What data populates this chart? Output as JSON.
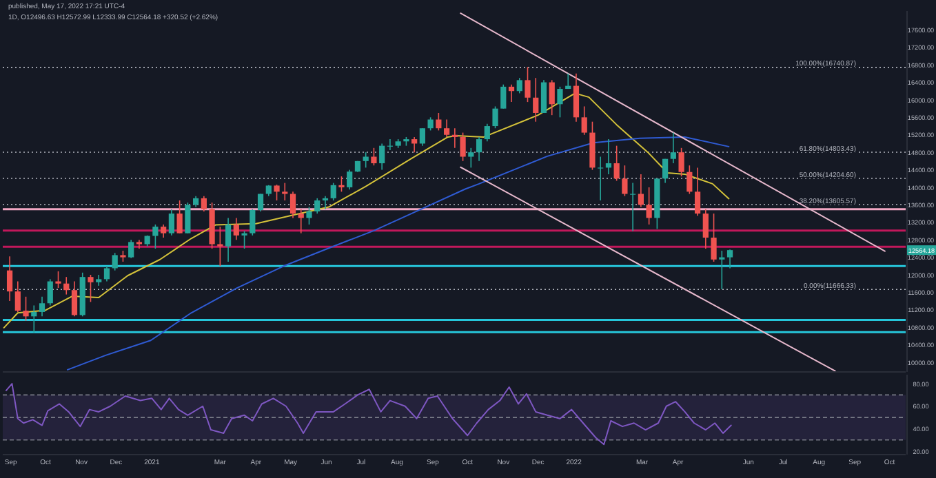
{
  "chart_data": [
    {
      "type": "candlestick",
      "annotations": [
        "published, May 17, 2022 17:21 UTC-4",
        "1D, O12496.63 H12572.99 L12333.99 C12564.18 +320.52 (+2.62%)",
        {
          "text": "12564.18",
          "y": 12564.18
        }
      ],
      "xlim": [
        "2020-08-25",
        "2022-10-15"
      ],
      "ylim": [
        9780,
        18030
      ],
      "tick_labels": "y",
      "grid": false,
      "yticks": [
        {
          "value": 10000,
          "label": "10000.00"
        },
        {
          "value": 10400,
          "label": "10400.00"
        },
        {
          "value": 10800,
          "label": "10800.00"
        },
        {
          "value": 11200,
          "label": "11200.00"
        },
        {
          "value": 11600,
          "label": "11600.00"
        },
        {
          "value": 12000,
          "label": "12000.00"
        },
        {
          "value": 12400,
          "label": "12400.00"
        },
        {
          "value": 12800,
          "label": "12800.00"
        },
        {
          "value": 13200,
          "label": "13200.00"
        },
        {
          "value": 13600,
          "label": "13600.00"
        },
        {
          "value": 14000,
          "label": "14000.00"
        },
        {
          "value": 14400,
          "label": "14400.00"
        },
        {
          "value": 14800,
          "label": "14800.00"
        },
        {
          "value": 15200,
          "label": "15200.00"
        },
        {
          "value": 15600,
          "label": "15600.00"
        },
        {
          "value": 16000,
          "label": "16000.00"
        },
        {
          "value": 16400,
          "label": "16400.00"
        },
        {
          "value": 16800,
          "label": "16800.00"
        },
        {
          "value": 17200,
          "label": "17200.00"
        },
        {
          "value": 17600,
          "label": "17600.00"
        }
      ],
      "x": [
        "2020-08-31",
        "2020-09-07",
        "2020-09-14",
        "2020-09-21",
        "2020-09-28",
        "2020-10-05",
        "2020-10-12",
        "2020-10-19",
        "2020-10-26",
        "2020-11-02",
        "2020-11-09",
        "2020-11-16",
        "2020-11-23",
        "2020-11-30",
        "2020-12-07",
        "2020-12-14",
        "2020-12-21",
        "2020-12-28",
        "2021-01-04",
        "2021-01-11",
        "2021-01-18",
        "2021-01-25",
        "2021-02-01",
        "2021-02-08",
        "2021-02-15",
        "2021-02-22",
        "2021-03-01",
        "2021-03-08",
        "2021-03-15",
        "2021-03-22",
        "2021-03-29",
        "2021-04-05",
        "2021-04-12",
        "2021-04-19",
        "2021-04-26",
        "2021-05-03",
        "2021-05-10",
        "2021-05-17",
        "2021-05-24",
        "2021-05-31",
        "2021-06-07",
        "2021-06-14",
        "2021-06-21",
        "2021-06-28",
        "2021-07-05",
        "2021-07-12",
        "2021-07-19",
        "2021-07-26",
        "2021-08-02",
        "2021-08-09",
        "2021-08-16",
        "2021-08-23",
        "2021-08-30",
        "2021-09-06",
        "2021-09-13",
        "2021-09-20",
        "2021-09-27",
        "2021-10-04",
        "2021-10-11",
        "2021-10-18",
        "2021-10-25",
        "2021-11-01",
        "2021-11-08",
        "2021-11-15",
        "2021-11-22",
        "2021-11-29",
        "2021-12-06",
        "2021-12-13",
        "2021-12-20",
        "2021-12-27",
        "2022-01-03",
        "2022-01-10",
        "2022-01-17",
        "2022-01-24",
        "2022-01-31",
        "2022-02-07",
        "2022-02-14",
        "2022-02-21",
        "2022-02-28",
        "2022-03-07",
        "2022-03-14",
        "2022-03-21",
        "2022-03-28",
        "2022-04-04",
        "2022-04-11",
        "2022-04-18",
        "2022-04-25",
        "2022-05-02",
        "2022-05-09",
        "2022-05-16"
      ],
      "ohlc": [
        [
          12100,
          12420,
          11400,
          11620
        ],
        [
          11620,
          11850,
          11150,
          11180
        ],
        [
          11180,
          11500,
          10950,
          11050
        ],
        [
          11050,
          11300,
          10680,
          11150
        ],
        [
          11150,
          11500,
          11050,
          11350
        ],
        [
          11350,
          11900,
          11300,
          11850
        ],
        [
          11850,
          12080,
          11700,
          11800
        ],
        [
          11800,
          11950,
          11550,
          11650
        ],
        [
          11650,
          11850,
          11050,
          11080
        ],
        [
          11080,
          12050,
          11050,
          11950
        ],
        [
          11950,
          12000,
          11380,
          11830
        ],
        [
          11830,
          12000,
          11750,
          11900
        ],
        [
          11900,
          12200,
          11850,
          12150
        ],
        [
          12150,
          12500,
          12100,
          12450
        ],
        [
          12450,
          12550,
          12300,
          12400
        ],
        [
          12400,
          12800,
          12380,
          12750
        ],
        [
          12750,
          12800,
          12600,
          12700
        ],
        [
          12700,
          12900,
          12650,
          12890
        ],
        [
          12890,
          13150,
          12600,
          13100
        ],
        [
          13100,
          13150,
          12850,
          12950
        ],
        [
          12950,
          13500,
          12900,
          13400
        ],
        [
          13400,
          13700,
          12950,
          12950
        ],
        [
          12950,
          13650,
          12950,
          13600
        ],
        [
          13600,
          13800,
          13550,
          13750
        ],
        [
          13750,
          13800,
          13450,
          13500
        ],
        [
          13500,
          13650,
          12600,
          12700
        ],
        [
          12700,
          13100,
          12200,
          12650
        ],
        [
          12650,
          13300,
          12300,
          13150
        ],
        [
          13150,
          13300,
          12800,
          12900
        ],
        [
          12900,
          13000,
          12600,
          12950
        ],
        [
          12950,
          13500,
          12900,
          13480
        ],
        [
          13480,
          13850,
          13450,
          13850
        ],
        [
          13850,
          14050,
          13800,
          14040
        ],
        [
          14040,
          14060,
          13700,
          13900
        ],
        [
          13900,
          14100,
          13700,
          13850
        ],
        [
          13850,
          13900,
          13300,
          13400
        ],
        [
          13400,
          13500,
          12950,
          13300
        ],
        [
          13300,
          13550,
          13150,
          13450
        ],
        [
          13450,
          13750,
          13400,
          13700
        ],
        [
          13700,
          13800,
          13500,
          13750
        ],
        [
          13750,
          14100,
          13700,
          14050
        ],
        [
          14050,
          14250,
          13900,
          14000
        ],
        [
          14000,
          14400,
          13950,
          14360
        ],
        [
          14360,
          14600,
          14350,
          14600
        ],
        [
          14600,
          14800,
          14450,
          14700
        ],
        [
          14700,
          14900,
          14500,
          14550
        ],
        [
          14550,
          15000,
          14400,
          14950
        ],
        [
          14950,
          15100,
          14850,
          14950
        ],
        [
          14950,
          15100,
          14900,
          15050
        ],
        [
          15050,
          15150,
          14950,
          15100
        ],
        [
          15100,
          15150,
          14800,
          15000
        ],
        [
          15000,
          15350,
          14950,
          15350
        ],
        [
          15350,
          15600,
          15300,
          15550
        ],
        [
          15550,
          15700,
          15300,
          15350
        ],
        [
          15350,
          15550,
          15150,
          15200
        ],
        [
          15200,
          15350,
          14900,
          15150
        ],
        [
          15150,
          15250,
          14600,
          14700
        ],
        [
          14700,
          14900,
          14450,
          14800
        ],
        [
          14800,
          15150,
          14600,
          15100
        ],
        [
          15100,
          15450,
          15050,
          15400
        ],
        [
          15400,
          15850,
          15350,
          15800
        ],
        [
          15800,
          16350,
          15800,
          16300
        ],
        [
          16300,
          16350,
          15950,
          16200
        ],
        [
          16200,
          16500,
          16150,
          16450
        ],
        [
          16450,
          16750,
          15950,
          16050
        ],
        [
          16050,
          16500,
          15500,
          15700
        ],
        [
          15700,
          16450,
          15700,
          16400
        ],
        [
          16400,
          16450,
          15650,
          15900
        ],
        [
          15900,
          16300,
          15600,
          16250
        ],
        [
          16250,
          16600,
          16250,
          16320
        ],
        [
          16320,
          16600,
          15500,
          15600
        ],
        [
          15600,
          15850,
          15200,
          15250
        ],
        [
          15250,
          15500,
          14400,
          14450
        ],
        [
          14450,
          14700,
          13700,
          14450
        ],
        [
          14450,
          15100,
          14300,
          14550
        ],
        [
          14550,
          14950,
          14150,
          14200
        ],
        [
          14200,
          14500,
          13800,
          13850
        ],
        [
          13850,
          14100,
          13000,
          13850
        ],
        [
          13850,
          14300,
          13550,
          13600
        ],
        [
          13600,
          14000,
          13150,
          13300
        ],
        [
          13300,
          14200,
          13050,
          14200
        ],
        [
          14200,
          14650,
          14100,
          14650
        ],
        [
          14650,
          15250,
          14550,
          14800
        ],
        [
          14800,
          14900,
          14250,
          14350
        ],
        [
          14350,
          14500,
          13850,
          13900
        ],
        [
          13900,
          14450,
          13350,
          13400
        ],
        [
          13400,
          13500,
          12600,
          12850
        ],
        [
          12850,
          13400,
          12300,
          12350
        ],
        [
          12350,
          12550,
          11670,
          12400
        ],
        [
          12400,
          12580,
          12150,
          12564.18
        ]
      ],
      "series": [
        {
          "type": "line",
          "color": "#d4c23a",
          "x": [
            "2020-08-26",
            "2020-09-07",
            "2020-10-01",
            "2020-10-24",
            "2020-11-16",
            "2020-12-11",
            "2021-01-08",
            "2021-02-04",
            "2021-02-25",
            "2021-04-01",
            "2021-05-07",
            "2021-06-03",
            "2021-07-05",
            "2021-08-13",
            "2021-09-14",
            "2021-09-21",
            "2021-10-15",
            "2021-12-01",
            "2022-01-02",
            "2022-01-14",
            "2022-02-07",
            "2022-03-06",
            "2022-03-23",
            "2022-04-07",
            "2022-05-01",
            "2022-05-15"
          ],
          "values": [
            10790,
            11130,
            11190,
            11510,
            11480,
            11980,
            12350,
            12830,
            13140,
            13170,
            13390,
            13550,
            14020,
            14650,
            15150,
            15180,
            15150,
            15650,
            16150,
            16060,
            15430,
            14800,
            14330,
            14300,
            14080,
            13740
          ]
        },
        {
          "type": "line",
          "color": "#2f5bd3",
          "x": [
            "2020-10-20",
            "2020-11-22",
            "2020-12-31",
            "2021-02-04",
            "2021-03-15",
            "2021-04-25",
            "2021-06-03",
            "2021-07-12",
            "2021-08-21",
            "2021-09-29",
            "2021-10-11",
            "2021-12-09",
            "2022-01-18",
            "2022-02-27",
            "2022-04-07",
            "2022-05-15"
          ],
          "values": [
            9830,
            10160,
            10500,
            11130,
            11690,
            12200,
            12610,
            13010,
            13490,
            13960,
            14080,
            14710,
            15020,
            15120,
            15150,
            14930
          ]
        },
        {
          "type": "line",
          "color": "#e6b8cc",
          "x": [
            "2021-09-25",
            "2022-09-27"
          ],
          "values": [
            17980,
            12540
          ]
        },
        {
          "type": "line",
          "color": "#e6b8cc",
          "x": [
            "2021-09-25",
            "2022-08-15"
          ],
          "values": [
            14460,
            9800
          ]
        }
      ],
      "ref_lines": [
        {
          "axis": "y",
          "value": 16740.87,
          "label": "100.00%(16740.87)",
          "color": "#b2b5be",
          "line_style": "dotted"
        },
        {
          "axis": "y",
          "value": 14803.43,
          "label": "61.80%(14803.43)",
          "color": "#b2b5be",
          "line_style": "dotted"
        },
        {
          "axis": "y",
          "value": 14204.6,
          "label": "50.00%(14204.60)",
          "color": "#b2b5be",
          "line_style": "dotted"
        },
        {
          "axis": "y",
          "value": 13605.57,
          "label": "38.20%(13605.57)",
          "color": "#b2b5be",
          "line_style": "dotted"
        },
        {
          "axis": "y",
          "value": 11666.33,
          "label": "0.00%(11666.33)",
          "color": "#b2b5be",
          "line_style": "dotted"
        },
        {
          "axis": "y",
          "value": 13500,
          "color": "#f2a7c3",
          "line_style": "solid"
        },
        {
          "axis": "y",
          "value": 13010,
          "color": "#c2185b",
          "line_style": "solid"
        },
        {
          "axis": "y",
          "value": 12640,
          "color": "#c2185b",
          "line_style": "solid"
        },
        {
          "axis": "y",
          "value": 12200,
          "color": "#26c6da",
          "line_style": "solid"
        },
        {
          "axis": "y",
          "value": 10970,
          "color": "#26c6da",
          "line_style": "solid"
        },
        {
          "axis": "y",
          "value": 10690,
          "color": "#26c6da",
          "line_style": "solid"
        }
      ]
    },
    {
      "type": "line",
      "xlim": [
        "2020-08-25",
        "2022-10-15"
      ],
      "ylim": [
        17,
        88
      ],
      "grid": false,
      "yticks": [
        {
          "value": 20,
          "label": "20.00"
        },
        {
          "value": 40,
          "label": "40.00"
        },
        {
          "value": 60,
          "label": "60.00"
        },
        {
          "value": 80,
          "label": "80.00"
        }
      ],
      "xticks": [
        {
          "value": "2020-09-01",
          "label": "Sep"
        },
        {
          "value": "2020-10-01",
          "label": "Oct"
        },
        {
          "value": "2020-11-01",
          "label": "Nov"
        },
        {
          "value": "2020-12-01",
          "label": "Dec"
        },
        {
          "value": "2021-01-01",
          "label": "2021"
        },
        {
          "value": "2021-03-01",
          "label": "Mar"
        },
        {
          "value": "2021-04-01",
          "label": "Apr"
        },
        {
          "value": "2021-05-01",
          "label": "May"
        },
        {
          "value": "2021-06-01",
          "label": "Jun"
        },
        {
          "value": "2021-07-01",
          "label": "Jul"
        },
        {
          "value": "2021-08-01",
          "label": "Aug"
        },
        {
          "value": "2021-09-01",
          "label": "Sep"
        },
        {
          "value": "2021-10-01",
          "label": "Oct"
        },
        {
          "value": "2021-11-01",
          "label": "Nov"
        },
        {
          "value": "2021-12-01",
          "label": "Dec"
        },
        {
          "value": "2022-01-01",
          "label": "2022"
        },
        {
          "value": "2022-03-01",
          "label": "Mar"
        },
        {
          "value": "2022-04-01",
          "label": "Apr"
        },
        {
          "value": "2022-06-01",
          "label": "Jun"
        },
        {
          "value": "2022-07-01",
          "label": "Jul"
        },
        {
          "value": "2022-08-01",
          "label": "Aug"
        },
        {
          "value": "2022-09-01",
          "label": "Sep"
        },
        {
          "value": "2022-10-01",
          "label": "Oct"
        }
      ],
      "bands": [
        {
          "axis": "y",
          "from": 30,
          "to": 70,
          "color": "#7e57c2"
        }
      ],
      "ref_lines": [
        {
          "axis": "y",
          "value": 70,
          "color": "#787b86",
          "line_style": "dashed"
        },
        {
          "axis": "y",
          "value": 50,
          "color": "#787b86",
          "line_style": "dashed"
        },
        {
          "axis": "y",
          "value": 30,
          "color": "#787b86",
          "line_style": "dashed"
        }
      ],
      "series": [
        {
          "color": "#7e57c2",
          "x": [
            "2020-08-28",
            "2020-09-02",
            "2020-09-07",
            "2020-09-12",
            "2020-09-20",
            "2020-09-28",
            "2020-10-03",
            "2020-10-13",
            "2020-10-21",
            "2020-10-31",
            "2020-11-08",
            "2020-11-16",
            "2020-11-26",
            "2020-12-09",
            "2020-12-22",
            "2021-01-01",
            "2021-01-09",
            "2021-01-16",
            "2021-01-24",
            "2021-02-01",
            "2021-02-14",
            "2021-02-21",
            "2021-03-04",
            "2021-03-11",
            "2021-03-22",
            "2021-03-29",
            "2021-04-06",
            "2021-04-16",
            "2021-04-27",
            "2021-05-07",
            "2021-05-12",
            "2021-05-23",
            "2021-06-07",
            "2021-06-17",
            "2021-06-28",
            "2021-07-08",
            "2021-07-18",
            "2021-07-26",
            "2021-08-08",
            "2021-08-18",
            "2021-08-28",
            "2021-09-05",
            "2021-09-18",
            "2021-10-01",
            "2021-10-09",
            "2021-10-19",
            "2021-10-29",
            "2021-11-06",
            "2021-11-14",
            "2021-11-21",
            "2021-11-29",
            "2021-12-09",
            "2021-12-20",
            "2021-12-30",
            "2022-01-09",
            "2022-01-20",
            "2022-01-27",
            "2022-02-02",
            "2022-02-12",
            "2022-02-22",
            "2022-03-04",
            "2022-03-15",
            "2022-03-22",
            "2022-03-30",
            "2022-04-07",
            "2022-04-15",
            "2022-04-25",
            "2022-05-03",
            "2022-05-10",
            "2022-05-17"
          ],
          "values": [
            74,
            80,
            49,
            45,
            48,
            43,
            56,
            62,
            55,
            42,
            57,
            55,
            60,
            69,
            65,
            67,
            57,
            67,
            57,
            52,
            60,
            39,
            36,
            49,
            52,
            47,
            62,
            67,
            60,
            45,
            36,
            55,
            55,
            62,
            70,
            75,
            55,
            65,
            60,
            49,
            67,
            69,
            49,
            34,
            45,
            57,
            65,
            77,
            62,
            71,
            55,
            52,
            49,
            57,
            45,
            32,
            26,
            47,
            42,
            45,
            39,
            45,
            60,
            64,
            55,
            45,
            39,
            45,
            36,
            43
          ]
        }
      ]
    }
  ]
}
